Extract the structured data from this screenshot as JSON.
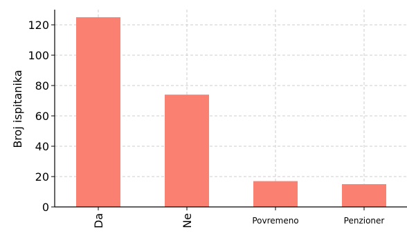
{
  "chart_data": {
    "type": "bar",
    "title": "",
    "xlabel": "",
    "ylabel": "Broj ispitanika",
    "categories": [
      "Da",
      "Ne",
      "Povremeno",
      "Penzioner"
    ],
    "values": [
      125,
      74,
      17,
      15
    ],
    "ylim": [
      0,
      130
    ],
    "yticks": [
      0,
      20,
      40,
      60,
      80,
      100,
      120
    ],
    "grid": true,
    "bar_color": "#fa8072",
    "grid_color": "#cccccc"
  }
}
